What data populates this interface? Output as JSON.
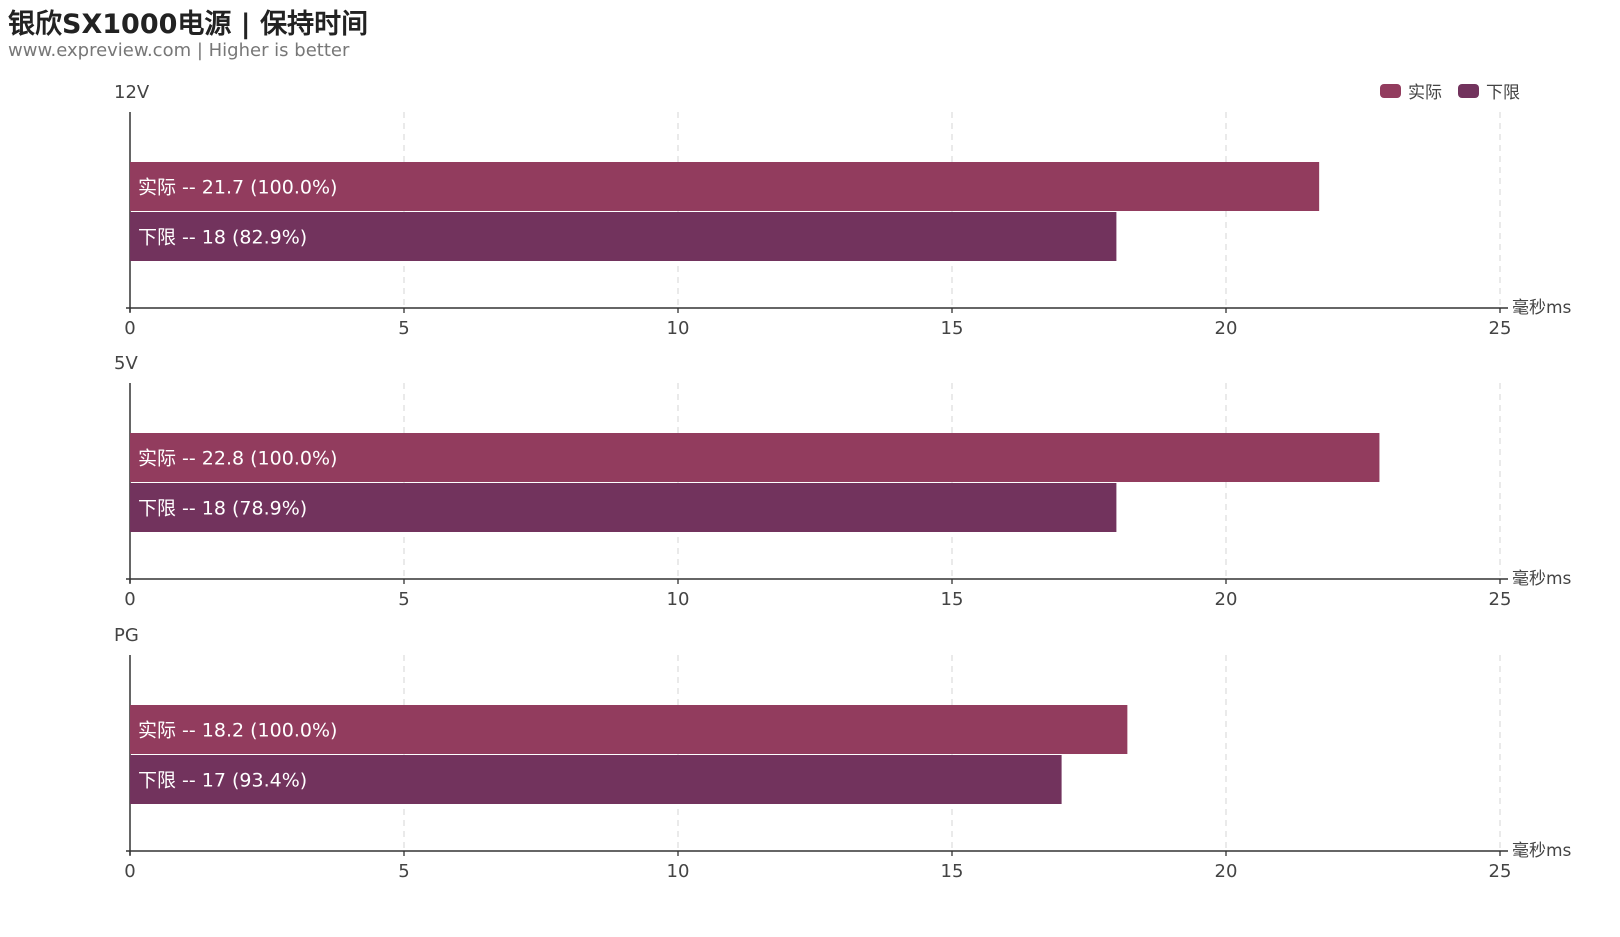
{
  "title": "银欣SX1000电源 | 保持时间",
  "subtitle": "www.expreview.com | Higher is better",
  "legend": [
    {
      "name": "实际",
      "color": "#923c5e"
    },
    {
      "name": "下限",
      "color": "#72335d"
    }
  ],
  "chart_data": [
    {
      "type": "bar",
      "orientation": "horizontal",
      "title": "12V",
      "xlabel": "毫秒ms",
      "xlim": [
        0,
        25
      ],
      "xticks": [
        0,
        5,
        10,
        15,
        20,
        25
      ],
      "series": [
        {
          "name": "实际",
          "value": 21.7,
          "label": "实际  --  21.7 (100.0%)"
        },
        {
          "name": "下限",
          "value": 18,
          "label": "下限  --  18 (82.9%)"
        }
      ]
    },
    {
      "type": "bar",
      "orientation": "horizontal",
      "title": "5V",
      "xlabel": "毫秒ms",
      "xlim": [
        0,
        25
      ],
      "xticks": [
        0,
        5,
        10,
        15,
        20,
        25
      ],
      "series": [
        {
          "name": "实际",
          "value": 22.8,
          "label": "实际  --  22.8 (100.0%)"
        },
        {
          "name": "下限",
          "value": 18,
          "label": "下限  --  18 (78.9%)"
        }
      ]
    },
    {
      "type": "bar",
      "orientation": "horizontal",
      "title": "PG",
      "xlabel": "毫秒ms",
      "xlim": [
        0,
        25
      ],
      "xticks": [
        0,
        5,
        10,
        15,
        20,
        25
      ],
      "series": [
        {
          "name": "实际",
          "value": 18.2,
          "label": "实际  --  18.2 (100.0%)"
        },
        {
          "name": "下限",
          "value": 17,
          "label": "下限  --  17 (93.4%)"
        }
      ]
    }
  ]
}
